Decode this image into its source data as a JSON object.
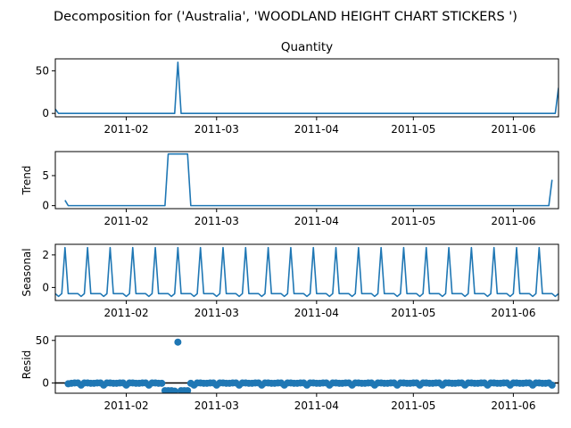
{
  "figure": {
    "suptitle": "Decomposition for ('Australia', 'WOODLAND  HEIGHT CHART STICKERS ')",
    "line_color": "#1f77b4",
    "zero_line_color": "#000000"
  },
  "chart_data": [
    {
      "type": "line",
      "title": "Quantity",
      "ylabel": "",
      "x_range": [
        "2011-01-10",
        "2011-06-15"
      ],
      "ylim": [
        -4,
        64
      ],
      "yticks": [
        "0",
        "50"
      ],
      "xticks": [
        "2011-02",
        "2011-03",
        "2011-04",
        "2011-05",
        "2011-06"
      ],
      "series": [
        {
          "points": [
            [
              "2011-01-10",
              5
            ],
            [
              "2011-01-11",
              0
            ],
            [
              "2011-02-16",
              0
            ],
            [
              "2011-02-17",
              60
            ],
            [
              "2011-02-18",
              0
            ],
            [
              "2011-06-14",
              0
            ],
            [
              "2011-06-15",
              30
            ]
          ]
        }
      ]
    },
    {
      "type": "line",
      "title": "",
      "ylabel": "Trend",
      "x_range": [
        "2011-01-10",
        "2011-06-15"
      ],
      "ylim": [
        -0.5,
        9.0
      ],
      "yticks": [
        "0",
        "5"
      ],
      "xticks": [
        "2011-02",
        "2011-03",
        "2011-04",
        "2011-05",
        "2011-06"
      ],
      "series": [
        {
          "points": [
            [
              "2011-01-13",
              0.9
            ],
            [
              "2011-01-14",
              0.0
            ],
            [
              "2011-02-13",
              0.0
            ],
            [
              "2011-02-14",
              8.6
            ],
            [
              "2011-02-20",
              8.6
            ],
            [
              "2011-02-21",
              0.0
            ],
            [
              "2011-06-12",
              0.0
            ],
            [
              "2011-06-13",
              4.3
            ]
          ]
        }
      ]
    },
    {
      "type": "line",
      "title": "",
      "ylabel": "Seasonal",
      "x_range": [
        "2011-01-10",
        "2011-06-15"
      ],
      "ylim": [
        -0.8,
        2.65
      ],
      "yticks": [
        "0",
        "2"
      ],
      "xticks": [
        "2011-02",
        "2011-03",
        "2011-04",
        "2011-05",
        "2011-06"
      ],
      "series": [
        {
          "pattern": [
            -0.38,
            -0.38,
            -0.38,
            -0.38,
            -0.55,
            -0.38,
            2.45
          ],
          "pattern_start": "2011-01-14",
          "x_start": "2011-01-10",
          "x_end": "2011-06-15"
        }
      ]
    },
    {
      "type": "scatter",
      "title": "",
      "ylabel": "Resid",
      "x_range": [
        "2011-01-10",
        "2011-06-15"
      ],
      "ylim": [
        -12,
        55
      ],
      "yticks": [
        "0",
        "50"
      ],
      "xticks": [
        "2011-02",
        "2011-03",
        "2011-04",
        "2011-05",
        "2011-06"
      ],
      "zero_line": true,
      "points": [
        [
          "2011-01-14",
          -0.9
        ],
        [
          "2011-01-15",
          -0.3
        ],
        [
          "2011-01-16",
          0.1
        ],
        [
          "2011-01-17",
          0.1
        ],
        [
          "2011-01-18",
          -2.5
        ],
        [
          "2011-01-19",
          0.1
        ],
        [
          "2011-01-20",
          0.1
        ],
        [
          "2011-01-21",
          -0.3
        ],
        [
          "2011-01-22",
          -0.3
        ],
        [
          "2011-01-23",
          0.1
        ],
        [
          "2011-01-24",
          0.1
        ],
        [
          "2011-01-25",
          -2.5
        ],
        [
          "2011-01-26",
          0.1
        ],
        [
          "2011-01-27",
          0.1
        ],
        [
          "2011-01-28",
          -0.3
        ],
        [
          "2011-01-29",
          -0.3
        ],
        [
          "2011-01-30",
          0.1
        ],
        [
          "2011-01-31",
          0.1
        ],
        [
          "2011-02-01",
          -2.5
        ],
        [
          "2011-02-02",
          0.1
        ],
        [
          "2011-02-03",
          0.1
        ],
        [
          "2011-02-04",
          -0.3
        ],
        [
          "2011-02-05",
          -0.3
        ],
        [
          "2011-02-06",
          0.1
        ],
        [
          "2011-02-07",
          0.1
        ],
        [
          "2011-02-08",
          -2.5
        ],
        [
          "2011-02-09",
          0.1
        ],
        [
          "2011-02-10",
          0.1
        ],
        [
          "2011-02-11",
          -0.3
        ],
        [
          "2011-02-12",
          -0.3
        ],
        [
          "2011-02-13",
          -9.0
        ],
        [
          "2011-02-14",
          -9.0
        ],
        [
          "2011-02-15",
          -9.0
        ],
        [
          "2011-02-16",
          -9.5
        ],
        [
          "2011-02-17",
          48.0
        ],
        [
          "2011-02-18",
          -9.0
        ],
        [
          "2011-02-19",
          -9.0
        ],
        [
          "2011-02-20",
          -9.0
        ],
        [
          "2011-02-21",
          -0.3
        ],
        [
          "2011-02-22",
          -2.5
        ],
        [
          "2011-02-23",
          0.1
        ],
        [
          "2011-02-24",
          0.1
        ],
        [
          "2011-02-25",
          -0.3
        ],
        [
          "2011-02-26",
          -0.3
        ],
        [
          "2011-02-27",
          0.1
        ],
        [
          "2011-02-28",
          0.1
        ],
        [
          "2011-03-01",
          -2.5
        ],
        [
          "2011-03-02",
          0.1
        ],
        [
          "2011-03-03",
          0.1
        ],
        [
          "2011-03-04",
          -0.3
        ],
        [
          "2011-03-05",
          -0.3
        ],
        [
          "2011-03-06",
          0.1
        ],
        [
          "2011-03-07",
          0.1
        ],
        [
          "2011-03-08",
          -2.5
        ],
        [
          "2011-03-09",
          0.1
        ],
        [
          "2011-03-10",
          0.1
        ],
        [
          "2011-03-11",
          -0.3
        ],
        [
          "2011-03-12",
          -0.3
        ],
        [
          "2011-03-13",
          0.1
        ],
        [
          "2011-03-14",
          0.1
        ],
        [
          "2011-03-15",
          -2.5
        ],
        [
          "2011-03-16",
          0.1
        ],
        [
          "2011-03-17",
          0.1
        ],
        [
          "2011-03-18",
          -0.3
        ],
        [
          "2011-03-19",
          -0.3
        ],
        [
          "2011-03-20",
          0.1
        ],
        [
          "2011-03-21",
          0.1
        ],
        [
          "2011-03-22",
          -2.5
        ],
        [
          "2011-03-23",
          0.1
        ],
        [
          "2011-03-24",
          0.1
        ],
        [
          "2011-03-25",
          -0.3
        ],
        [
          "2011-03-26",
          -0.3
        ],
        [
          "2011-03-27",
          0.1
        ],
        [
          "2011-03-28",
          0.1
        ],
        [
          "2011-03-29",
          -2.5
        ],
        [
          "2011-03-30",
          0.1
        ],
        [
          "2011-03-31",
          0.1
        ],
        [
          "2011-04-01",
          -0.3
        ],
        [
          "2011-04-02",
          -0.3
        ],
        [
          "2011-04-03",
          0.1
        ],
        [
          "2011-04-04",
          0.1
        ],
        [
          "2011-04-05",
          -2.5
        ],
        [
          "2011-04-06",
          0.1
        ],
        [
          "2011-04-07",
          0.1
        ],
        [
          "2011-04-08",
          -0.3
        ],
        [
          "2011-04-09",
          -0.3
        ],
        [
          "2011-04-10",
          0.1
        ],
        [
          "2011-04-11",
          0.1
        ],
        [
          "2011-04-12",
          -2.5
        ],
        [
          "2011-04-13",
          0.1
        ],
        [
          "2011-04-14",
          0.1
        ],
        [
          "2011-04-15",
          -0.3
        ],
        [
          "2011-04-16",
          -0.3
        ],
        [
          "2011-04-17",
          0.1
        ],
        [
          "2011-04-18",
          0.1
        ],
        [
          "2011-04-19",
          -2.5
        ],
        [
          "2011-04-20",
          0.1
        ],
        [
          "2011-04-21",
          0.1
        ],
        [
          "2011-04-22",
          -0.3
        ],
        [
          "2011-04-23",
          -0.3
        ],
        [
          "2011-04-24",
          0.1
        ],
        [
          "2011-04-25",
          0.1
        ],
        [
          "2011-04-26",
          -2.5
        ],
        [
          "2011-04-27",
          0.1
        ],
        [
          "2011-04-28",
          0.1
        ],
        [
          "2011-04-29",
          -0.3
        ],
        [
          "2011-04-30",
          -0.3
        ],
        [
          "2011-05-01",
          0.1
        ],
        [
          "2011-05-02",
          0.1
        ],
        [
          "2011-05-03",
          -2.5
        ],
        [
          "2011-05-04",
          0.1
        ],
        [
          "2011-05-05",
          0.1
        ],
        [
          "2011-05-06",
          -0.3
        ],
        [
          "2011-05-07",
          -0.3
        ],
        [
          "2011-05-08",
          0.1
        ],
        [
          "2011-05-09",
          0.1
        ],
        [
          "2011-05-10",
          -2.5
        ],
        [
          "2011-05-11",
          0.1
        ],
        [
          "2011-05-12",
          0.1
        ],
        [
          "2011-05-13",
          -0.3
        ],
        [
          "2011-05-14",
          -0.3
        ],
        [
          "2011-05-15",
          0.1
        ],
        [
          "2011-05-16",
          0.1
        ],
        [
          "2011-05-17",
          -2.5
        ],
        [
          "2011-05-18",
          0.1
        ],
        [
          "2011-05-19",
          0.1
        ],
        [
          "2011-05-20",
          -0.3
        ],
        [
          "2011-05-21",
          -0.3
        ],
        [
          "2011-05-22",
          0.1
        ],
        [
          "2011-05-23",
          0.1
        ],
        [
          "2011-05-24",
          -2.5
        ],
        [
          "2011-05-25",
          0.1
        ],
        [
          "2011-05-26",
          0.1
        ],
        [
          "2011-05-27",
          -0.3
        ],
        [
          "2011-05-28",
          -0.3
        ],
        [
          "2011-05-29",
          0.1
        ],
        [
          "2011-05-30",
          0.1
        ],
        [
          "2011-05-31",
          -2.5
        ],
        [
          "2011-06-01",
          0.1
        ],
        [
          "2011-06-02",
          0.1
        ],
        [
          "2011-06-03",
          -0.3
        ],
        [
          "2011-06-04",
          -0.3
        ],
        [
          "2011-06-05",
          0.1
        ],
        [
          "2011-06-06",
          0.1
        ],
        [
          "2011-06-07",
          -2.5
        ],
        [
          "2011-06-08",
          0.1
        ],
        [
          "2011-06-09",
          0.1
        ],
        [
          "2011-06-10",
          -0.3
        ],
        [
          "2011-06-11",
          -0.3
        ],
        [
          "2011-06-12",
          0.1
        ],
        [
          "2011-06-13",
          -2.5
        ]
      ]
    }
  ]
}
